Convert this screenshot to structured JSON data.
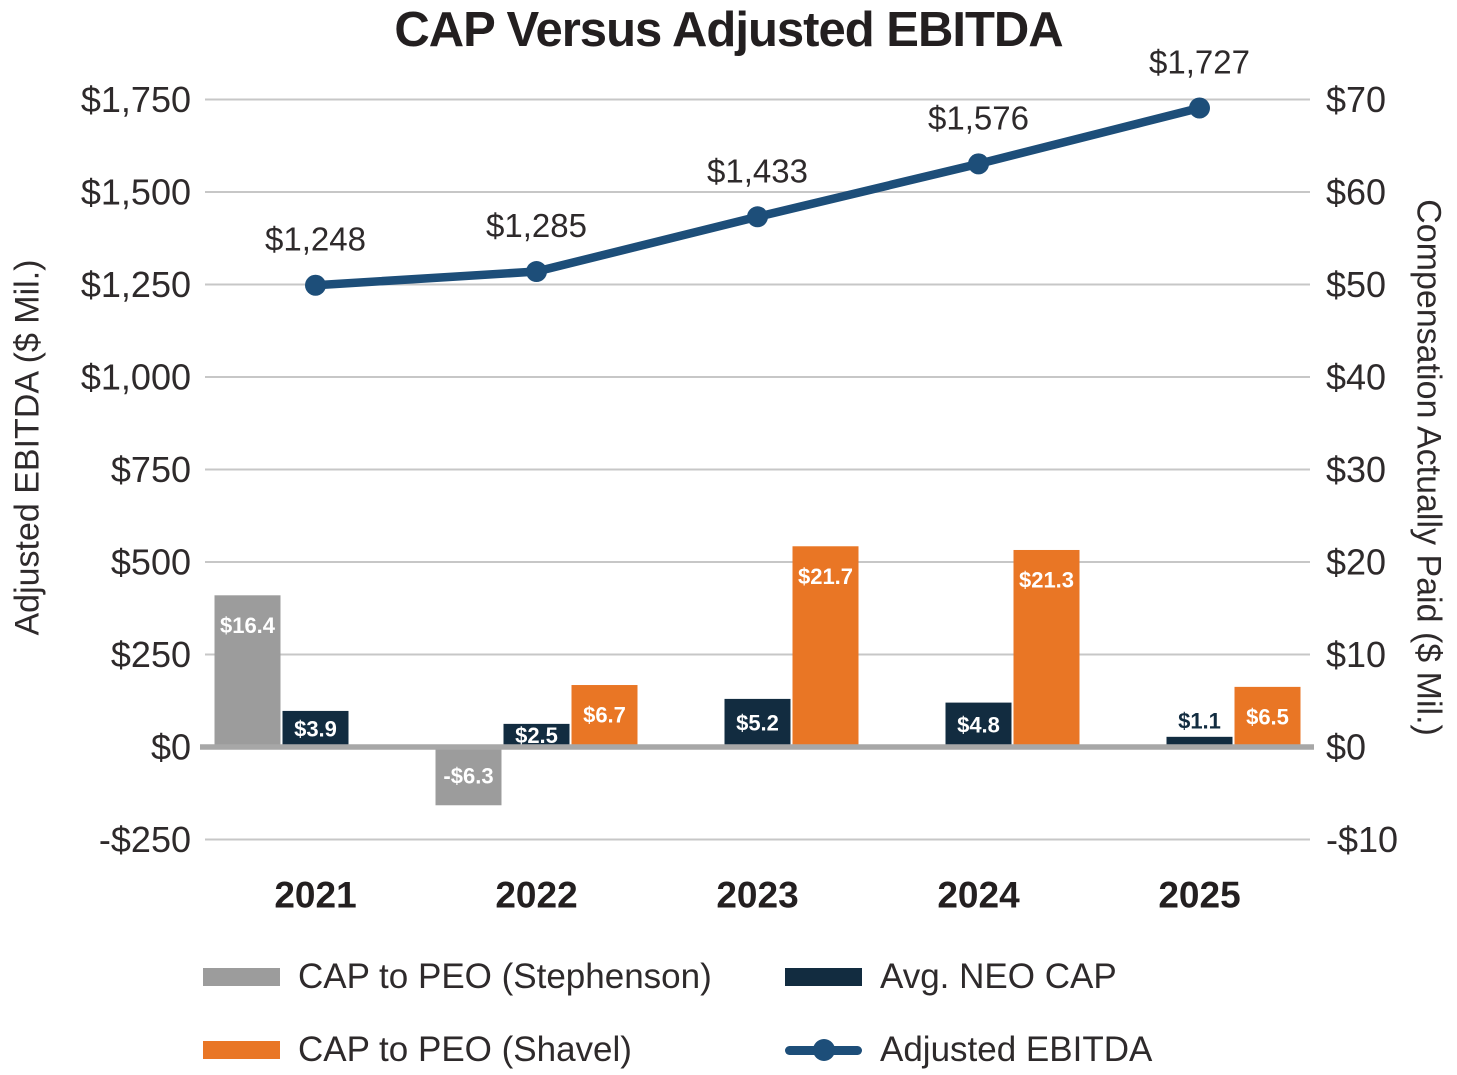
{
  "chart_data": {
    "type": "bar+line combo",
    "title": "CAP Versus Adjusted EBITDA",
    "categories": [
      "2021",
      "2022",
      "2023",
      "2024",
      "2025"
    ],
    "left_axis": {
      "title": "Adjusted EBITDA ($ Mil.)",
      "tick_values": [
        1750,
        1500,
        1250,
        1000,
        750,
        500,
        250,
        0,
        -250
      ],
      "tick_labels": [
        "$1,750",
        "$1,500",
        "$1,250",
        "$1,000",
        "$750",
        "$500",
        "$250",
        "$0",
        "-$250"
      ],
      "range": [
        -250,
        1750
      ],
      "grid": true
    },
    "right_axis": {
      "title": "Compensation Actually Paid ($ Mil.)",
      "tick_values": [
        70,
        60,
        50,
        40,
        30,
        20,
        10,
        0,
        -10
      ],
      "tick_labels": [
        "$70",
        "$60",
        "$50",
        "$40",
        "$30",
        "$20",
        "$10",
        "$0",
        "-$10"
      ],
      "range": [
        -10,
        70
      ]
    },
    "bar_series": [
      {
        "name": "CAP to PEO (Stephenson)",
        "axis": "right",
        "color": "#9C9C9C",
        "values": [
          16.4,
          -6.3,
          null,
          null,
          null
        ],
        "labels": [
          "$16.4",
          "-$6.3",
          null,
          null,
          null
        ]
      },
      {
        "name": "Avg. NEO CAP",
        "axis": "right",
        "color": "#122C40",
        "values": [
          3.9,
          2.5,
          5.2,
          4.8,
          1.1
        ],
        "labels": [
          "$3.9",
          "$2.5",
          "$5.2",
          "$4.8",
          "$1.1"
        ]
      },
      {
        "name": "CAP to PEO (Shavel)",
        "axis": "right",
        "color": "#E97625",
        "values": [
          null,
          6.7,
          21.7,
          21.3,
          6.5
        ],
        "labels": [
          null,
          "$6.7",
          "$21.7",
          "$21.3",
          "$6.5"
        ]
      }
    ],
    "line_series": {
      "name": "Adjusted EBITDA",
      "axis": "left",
      "color": "#1D4E79",
      "values": [
        1248,
        1285,
        1433,
        1576,
        1727
      ],
      "labels": [
        "$1,248",
        "$1,285",
        "$1,433",
        "$1,576",
        "$1,727"
      ]
    },
    "legend_position": "bottom",
    "colors": {
      "gridline": "#C7C7C7",
      "zero_line": "#A7A7A7",
      "text": "#2E2A2B",
      "bar_label_text": "#FFFFFF"
    }
  }
}
